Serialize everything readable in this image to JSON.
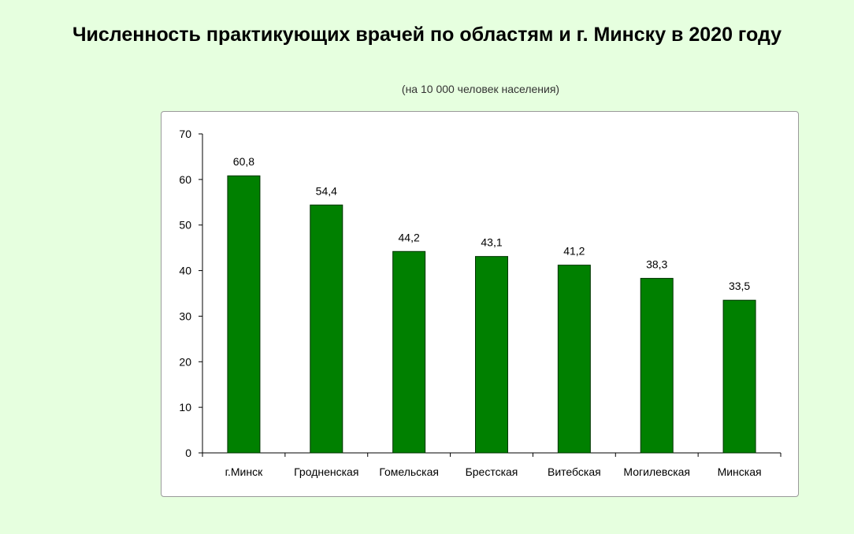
{
  "page": {
    "title": "Численность практикующих врачей по областям и г. Минску в 2020 году",
    "subtitle": "(на 10 000 человек населения)"
  },
  "colors": {
    "bar": "#008000",
    "bar_border": "#003300",
    "background": "#e6ffdf"
  },
  "chart_data": {
    "type": "bar",
    "title": "Численность практикующих врачей по областям и г. Минску в 2020 году",
    "subtitle": "(на 10 000 человек населения)",
    "categories": [
      "г.Минск",
      "Гродненская",
      "Гомельская",
      "Брестская",
      "Витебская",
      "Могилевская",
      "Минская"
    ],
    "values": [
      60.8,
      54.4,
      44.2,
      43.1,
      41.2,
      38.3,
      33.5
    ],
    "value_labels": [
      "60,8",
      "54,4",
      "44,2",
      "43,1",
      "41,2",
      "38,3",
      "33,5"
    ],
    "ylim": [
      0,
      70
    ],
    "yticks": [
      0,
      10,
      20,
      30,
      40,
      50,
      60,
      70
    ],
    "grid": false,
    "legend": "none"
  }
}
